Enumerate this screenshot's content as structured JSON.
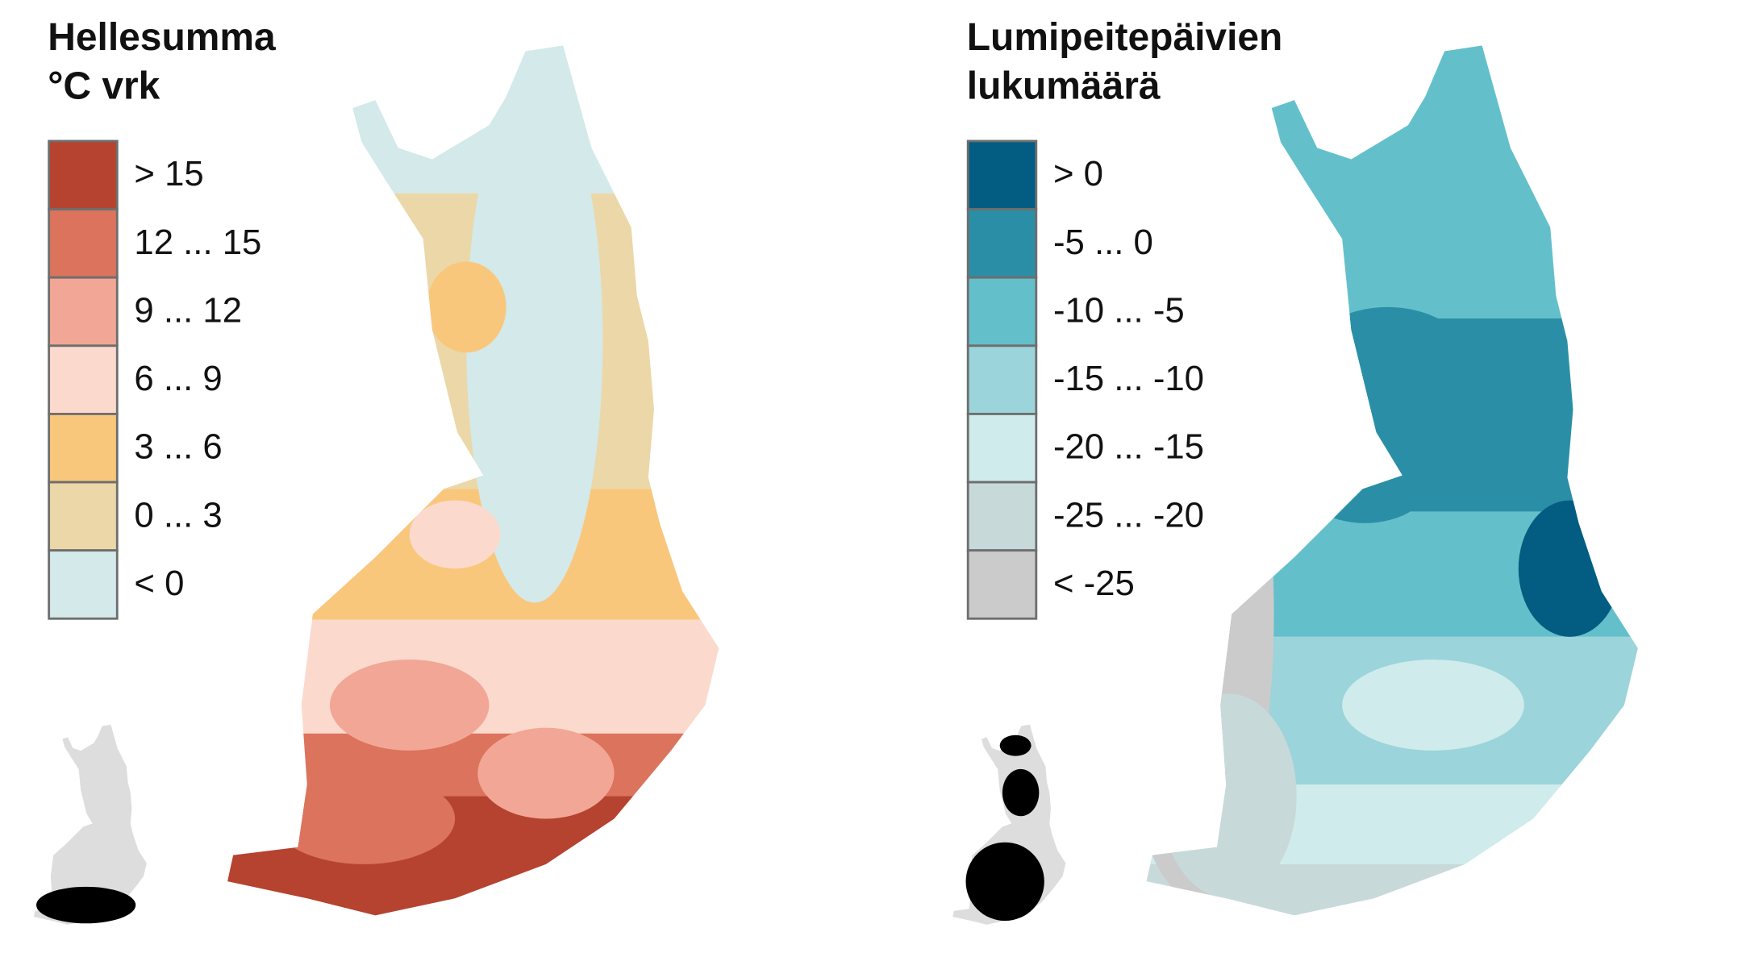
{
  "panels": [
    {
      "title": [
        "Hellesumma",
        "°C vrk"
      ],
      "legend": [
        {
          "label": "> 15",
          "color": "#b5432f"
        },
        {
          "label": "12 ... 15",
          "color": "#dc735c"
        },
        {
          "label": "9 ... 12",
          "color": "#f2a796"
        },
        {
          "label": "6 ... 9",
          "color": "#fbdacd"
        },
        {
          "label": "3 ... 6",
          "color": "#f9c77c"
        },
        {
          "label": "0 ... 3",
          "color": "#ecd7a8"
        },
        {
          "label": "< 0",
          "color": "#d3e9ea"
        }
      ]
    },
    {
      "title": [
        "Lumipeitepäivien",
        "lukumäärä"
      ],
      "legend": [
        {
          "label": "> 0",
          "color": "#035d82"
        },
        {
          "label": "-5 ... 0",
          "color": "#2a8fa6"
        },
        {
          "label": "-10 ... -5",
          "color": "#63c0cb"
        },
        {
          "label": "-15 ... -10",
          "color": "#9bd4da"
        },
        {
          "label": "-20 ... -15",
          "color": "#d0ebec"
        },
        {
          "label": "-25 ... -20",
          "color": "#c8d9da"
        },
        {
          "label": "< -25",
          "color": "#cbcbcb"
        }
      ]
    }
  ]
}
